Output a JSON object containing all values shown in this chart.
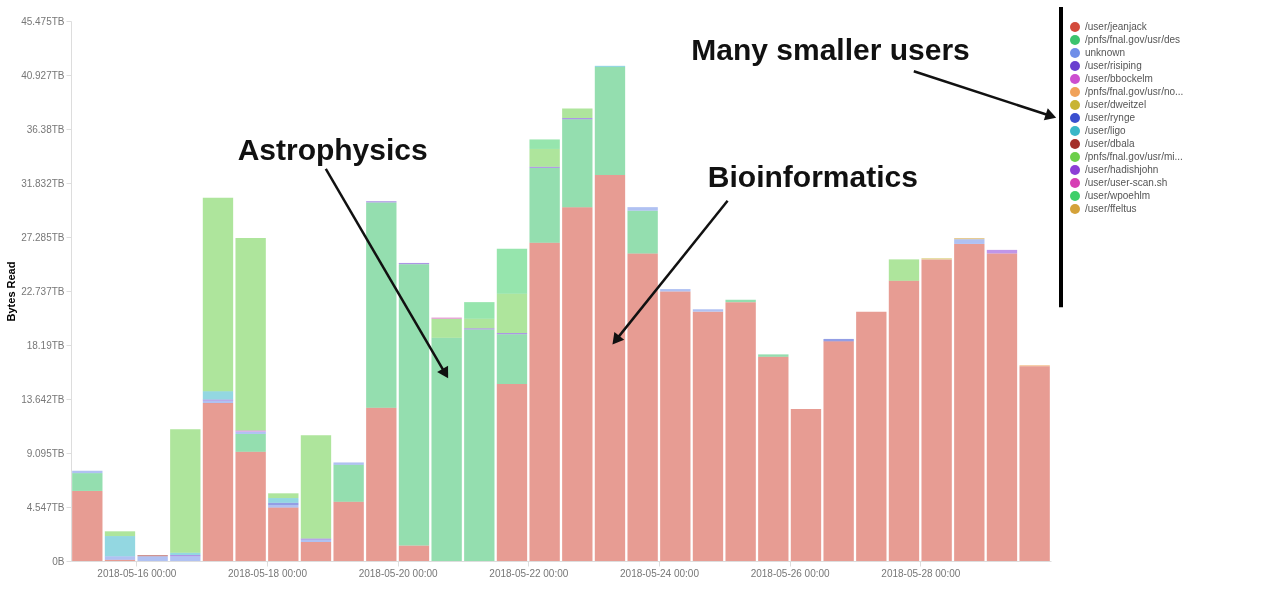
{
  "chart_data": {
    "type": "bar",
    "stacked": true,
    "ylabel": "Bytes Read",
    "x": [
      "2018-05-15T06:00",
      "2018-05-15T18:00",
      "2018-05-16T06:00",
      "2018-05-16T18:00",
      "2018-05-17T06:00",
      "2018-05-17T18:00",
      "2018-05-18T06:00",
      "2018-05-18T18:00",
      "2018-05-19T06:00",
      "2018-05-19T18:00",
      "2018-05-20T06:00",
      "2018-05-20T18:00",
      "2018-05-21T06:00",
      "2018-05-21T18:00",
      "2018-05-22T06:00",
      "2018-05-22T18:00",
      "2018-05-23T06:00",
      "2018-05-23T18:00",
      "2018-05-24T06:00",
      "2018-05-24T18:00",
      "2018-05-25T06:00",
      "2018-05-25T18:00",
      "2018-05-26T06:00",
      "2018-05-26T18:00",
      "2018-05-27T06:00",
      "2018-05-27T18:00",
      "2018-05-28T06:00",
      "2018-05-28T18:00",
      "2018-05-29T06:00",
      "2018-05-29T18:00"
    ],
    "series": [
      {
        "name": "/user/jeanjack",
        "color": "#d34a3b",
        "values": [
          5.9,
          0.1,
          null,
          null,
          13.3,
          9.2,
          4.5,
          1.6,
          5.0,
          12.9,
          1.3,
          null,
          null,
          14.9,
          26.8,
          29.8,
          32.5,
          25.9,
          22.7,
          21.0,
          21.8,
          17.2,
          12.8,
          18.5,
          21.0,
          23.6,
          25.4,
          26.7,
          25.9,
          16.4
        ]
      },
      {
        "name": "/pnfs/fnal.gov/usr/des",
        "color": "#3cc36e",
        "values": [
          1.5,
          null,
          null,
          null,
          null,
          1.5,
          null,
          null,
          3.1,
          17.3,
          23.7,
          18.8,
          19.5,
          4.2,
          6.3,
          7.4,
          9.1,
          3.6,
          null,
          null,
          0.2,
          0.2,
          null,
          null,
          null,
          null,
          null,
          null,
          null,
          null
        ]
      },
      {
        "name": "unknown",
        "color": "#6f8ee8",
        "values": [
          0.2,
          0.3,
          0.4,
          0.4,
          0.2,
          0.2,
          0.2,
          0.2,
          0.2,
          null,
          null,
          null,
          null,
          null,
          null,
          null,
          null,
          0.3,
          0.2,
          0.2,
          null,
          null,
          null,
          null,
          null,
          null,
          null,
          0.4,
          null,
          null
        ]
      },
      {
        "name": "/user/risiping",
        "color": "#6a3fcf",
        "values": [
          null,
          null,
          null,
          0.1,
          0.1,
          null,
          null,
          0.1,
          null,
          0.1,
          0.1,
          null,
          0.1,
          0.1,
          0.1,
          0.1,
          null,
          null,
          null,
          null,
          null,
          null,
          null,
          null,
          null,
          null,
          null,
          null,
          null,
          null
        ]
      },
      {
        "name": "/user/bbockelm",
        "color": "#cc4fd0",
        "values": [
          null,
          null,
          null,
          null,
          null,
          0.1,
          null,
          null,
          null,
          null,
          null,
          null,
          null,
          null,
          null,
          null,
          null,
          null,
          null,
          null,
          null,
          null,
          null,
          null,
          null,
          null,
          null,
          null,
          null,
          null
        ]
      },
      {
        "name": "/pnfs/fnal.gov/usr/no...",
        "color": "#f0a25a",
        "values": [
          null,
          null,
          null,
          null,
          null,
          null,
          null,
          null,
          null,
          null,
          null,
          null,
          null,
          null,
          null,
          null,
          null,
          null,
          null,
          null,
          null,
          null,
          null,
          null,
          null,
          null,
          null,
          null,
          null,
          0.1
        ]
      },
      {
        "name": "/user/dweitzel",
        "color": "#c8b434",
        "values": [
          null,
          null,
          null,
          null,
          null,
          null,
          null,
          null,
          null,
          null,
          null,
          null,
          null,
          null,
          null,
          null,
          null,
          null,
          null,
          null,
          null,
          null,
          null,
          null,
          null,
          null,
          0.1,
          null,
          null,
          null
        ]
      },
      {
        "name": "/user/rynge",
        "color": "#3a4fcf",
        "values": [
          null,
          null,
          null,
          null,
          null,
          null,
          0.2,
          null,
          null,
          null,
          null,
          null,
          null,
          null,
          null,
          null,
          null,
          null,
          null,
          null,
          null,
          null,
          null,
          0.2,
          null,
          null,
          null,
          null,
          null,
          null
        ]
      },
      {
        "name": "/user/ligo",
        "color": "#3ab7c8",
        "values": [
          null,
          1.7,
          null,
          0.2,
          0.7,
          null,
          0.4,
          null,
          null,
          null,
          null,
          null,
          null,
          null,
          null,
          null,
          0.1,
          null,
          null,
          null,
          null,
          null,
          null,
          null,
          null,
          null,
          null,
          null,
          null,
          null
        ]
      },
      {
        "name": "/user/dbala",
        "color": "#a3302a",
        "values": [
          null,
          null,
          0.1,
          null,
          null,
          null,
          null,
          null,
          null,
          null,
          null,
          null,
          null,
          null,
          null,
          null,
          null,
          null,
          null,
          null,
          null,
          null,
          null,
          null,
          null,
          null,
          null,
          null,
          null,
          null
        ]
      },
      {
        "name": "/pnfs/fnal.gov/usr/mi...",
        "color": "#6ccf4a",
        "values": [
          null,
          0.4,
          null,
          10.4,
          16.3,
          16.2,
          0.4,
          8.7,
          null,
          null,
          null,
          1.6,
          0.8,
          3.3,
          1.5,
          0.8,
          null,
          null,
          null,
          null,
          null,
          null,
          null,
          null,
          null,
          1.8,
          null,
          null,
          null,
          null
        ]
      },
      {
        "name": "/user/hadishjohn",
        "color": "#8d3fd6",
        "values": [
          null,
          null,
          null,
          null,
          null,
          null,
          null,
          null,
          null,
          null,
          null,
          null,
          null,
          null,
          null,
          null,
          null,
          null,
          null,
          null,
          null,
          null,
          null,
          null,
          null,
          null,
          null,
          null,
          0.3,
          null
        ]
      },
      {
        "name": "/user/user-scan.sh",
        "color": "#d63fb4",
        "values": [
          null,
          null,
          null,
          null,
          null,
          null,
          null,
          null,
          null,
          null,
          null,
          0.1,
          null,
          null,
          null,
          null,
          null,
          null,
          null,
          null,
          null,
          null,
          null,
          null,
          null,
          null,
          null,
          null,
          null,
          null
        ]
      },
      {
        "name": "/user/wpoehlm",
        "color": "#3fcf6a",
        "values": [
          null,
          null,
          null,
          null,
          null,
          null,
          null,
          null,
          null,
          null,
          null,
          null,
          1.4,
          3.8,
          0.8,
          null,
          null,
          null,
          null,
          null,
          null,
          null,
          null,
          null,
          null,
          null,
          null,
          null,
          null,
          null
        ]
      },
      {
        "name": "/user/ffeltus",
        "color": "#d4a23a",
        "values": [
          null,
          null,
          null,
          null,
          null,
          null,
          null,
          null,
          null,
          null,
          null,
          null,
          null,
          null,
          null,
          null,
          null,
          null,
          null,
          null,
          null,
          null,
          null,
          null,
          null,
          null,
          null,
          0.1,
          null,
          null
        ]
      }
    ],
    "xlim": [
      "2018-05-15T00:00",
      "2018-05-30T00:00"
    ],
    "xticks": [
      {
        "value": "2018-05-16T00:00",
        "label": "2018-05-16 00:00"
      },
      {
        "value": "2018-05-18T00:00",
        "label": "2018-05-18 00:00"
      },
      {
        "value": "2018-05-20T00:00",
        "label": "2018-05-20 00:00"
      },
      {
        "value": "2018-05-22T00:00",
        "label": "2018-05-22 00:00"
      },
      {
        "value": "2018-05-24T00:00",
        "label": "2018-05-24 00:00"
      },
      {
        "value": "2018-05-26T00:00",
        "label": "2018-05-26 00:00"
      },
      {
        "value": "2018-05-28T00:00",
        "label": "2018-05-28 00:00"
      }
    ],
    "ylim": [
      0,
      45.475
    ],
    "yticks": [
      {
        "value": 0,
        "label": "0B"
      },
      {
        "value": 4.547,
        "label": "4.547TB"
      },
      {
        "value": 9.095,
        "label": "9.095TB"
      },
      {
        "value": 13.642,
        "label": "13.642TB"
      },
      {
        "value": 18.19,
        "label": "18.19TB"
      },
      {
        "value": 22.737,
        "label": "22.737TB"
      },
      {
        "value": 27.285,
        "label": "27.285TB"
      },
      {
        "value": 31.832,
        "label": "31.832TB"
      },
      {
        "value": 36.38,
        "label": "36.38TB"
      },
      {
        "value": 40.927,
        "label": "40.927TB"
      },
      {
        "value": 45.475,
        "label": "45.475TB"
      }
    ],
    "grid": false,
    "legend": "right",
    "annotations": [
      "Many smaller users",
      "Astrophysics",
      "Bioinformatics"
    ]
  }
}
